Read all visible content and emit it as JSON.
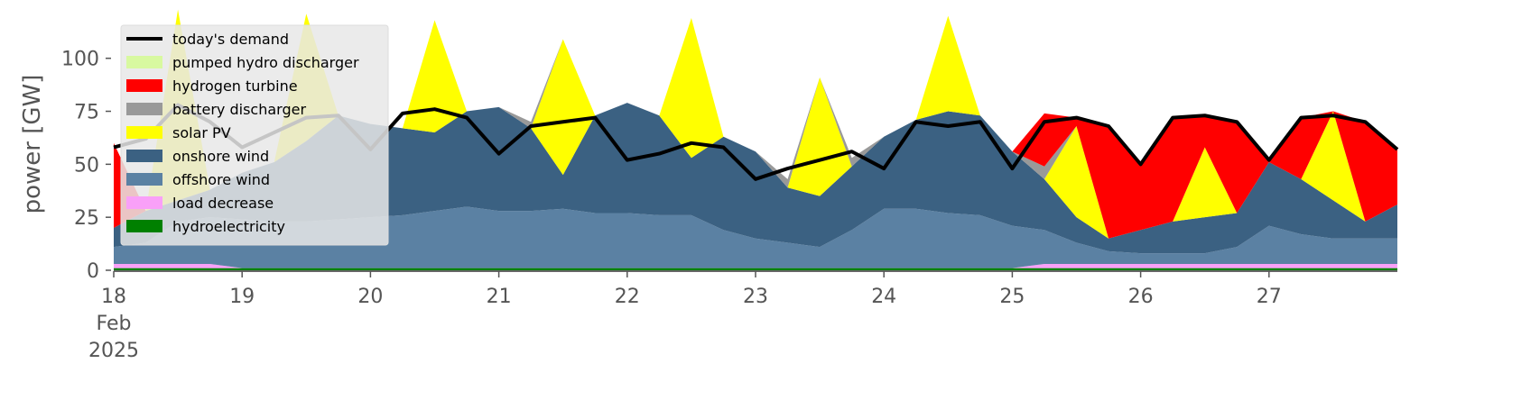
{
  "chart_data": {
    "type": "stacked_area",
    "ylabel": "power [GW]",
    "x": [
      18,
      18.25,
      18.5,
      18.75,
      19,
      19.25,
      19.5,
      19.75,
      20,
      20.25,
      20.5,
      20.75,
      21,
      21.25,
      21.5,
      21.75,
      22,
      22.25,
      22.5,
      22.75,
      23,
      23.25,
      23.5,
      23.75,
      24,
      24.25,
      24.5,
      24.75,
      25,
      25.25,
      25.5,
      25.75,
      26,
      26.25,
      26.5,
      26.75,
      27,
      27.25,
      27.5,
      27.75,
      28
    ],
    "xlim": [
      18,
      28
    ],
    "xticks": [
      {
        "value": 18,
        "label": "18\nFeb\n2025"
      },
      19,
      20,
      21,
      22,
      23,
      24,
      25,
      26,
      27
    ],
    "ylim": [
      0,
      119
    ],
    "yticks": [
      0,
      25,
      50,
      75,
      100
    ],
    "legend": "upper left",
    "line": {
      "name": "today's demand",
      "color": "#000000",
      "values": [
        58,
        62,
        78,
        70,
        58,
        65,
        72,
        73,
        57,
        74,
        76,
        72,
        55,
        68,
        70,
        72,
        52,
        55,
        60,
        58,
        43,
        48,
        52,
        56,
        48,
        70,
        68,
        70,
        48,
        70,
        72,
        68,
        50,
        72,
        73,
        70,
        52,
        72,
        73,
        70,
        57
      ]
    },
    "series": [
      {
        "name": "pumped hydro discharger",
        "color": "#d8f9a0",
        "values": [
          0,
          0,
          0,
          0,
          0,
          0,
          0,
          0,
          0,
          0,
          0,
          0,
          0,
          0,
          0,
          0,
          0,
          0,
          0,
          0,
          0,
          0,
          0,
          0,
          0,
          0,
          0,
          0,
          0,
          0,
          0,
          0,
          0,
          0,
          0,
          0,
          0,
          0,
          0,
          0,
          0
        ]
      },
      {
        "name": "hydrogen turbine",
        "color": "#ff0000",
        "values": [
          40,
          0,
          0,
          0,
          0,
          0,
          0,
          0,
          0,
          0,
          0,
          0,
          0,
          0,
          0,
          0,
          0,
          0,
          0,
          0,
          0,
          0,
          0,
          0,
          0,
          0,
          0,
          0,
          0,
          25,
          4,
          53,
          31,
          49,
          15,
          43,
          1,
          29,
          0,
          47,
          26
        ]
      },
      {
        "name": "battery discharger",
        "color": "#999999",
        "values": [
          0,
          0,
          0,
          0,
          0,
          0,
          0,
          0,
          0,
          0,
          0,
          0,
          0,
          3,
          0,
          0,
          0,
          0,
          0,
          0,
          0,
          4,
          0,
          4,
          0,
          0,
          0,
          0,
          0,
          6,
          0,
          0,
          0,
          0,
          0,
          0,
          0,
          0,
          0,
          0,
          0
        ]
      },
      {
        "name": "solar PV",
        "color": "#ffff00",
        "values": [
          0,
          0,
          90,
          0,
          0,
          0,
          60,
          0,
          0,
          0,
          53,
          0,
          0,
          0,
          64,
          0,
          0,
          0,
          66,
          0,
          0,
          0,
          56,
          0,
          0,
          0,
          45,
          0,
          0,
          0,
          43,
          0,
          0,
          0,
          33,
          0,
          0,
          0,
          42,
          0,
          0
        ]
      },
      {
        "name": "onshore wind",
        "color": "#3b6182",
        "values": [
          9,
          15,
          10,
          13,
          22,
          28,
          38,
          49,
          44,
          41,
          37,
          45,
          49,
          39,
          16,
          46,
          52,
          47,
          27,
          44,
          41,
          26,
          24,
          30,
          34,
          42,
          48,
          47,
          35,
          24,
          12,
          6,
          11,
          15,
          17,
          16,
          30,
          26,
          18,
          8,
          16
        ]
      },
      {
        "name": "offshore wind",
        "color": "#5b81a3",
        "values": [
          8,
          10,
          20,
          22,
          23,
          22,
          22,
          23,
          24,
          25,
          27,
          29,
          27,
          27,
          28,
          26,
          26,
          25,
          25,
          18,
          14,
          12,
          10,
          18,
          28,
          28,
          26,
          25,
          20,
          16,
          10,
          6,
          5,
          5,
          5,
          8,
          18,
          14,
          12,
          12,
          12
        ]
      },
      {
        "name": "load decrease",
        "color": "#f9a0f8",
        "values": [
          2,
          2,
          2,
          2,
          0,
          0,
          0,
          0,
          0,
          0,
          0,
          0,
          0,
          0,
          0,
          0,
          0,
          0,
          0,
          0,
          0,
          0,
          0,
          0,
          0,
          0,
          0,
          0,
          0,
          2,
          2,
          2,
          2,
          2,
          2,
          2,
          2,
          2,
          2,
          2,
          2
        ]
      },
      {
        "name": "hydroelectricity",
        "color": "#008000",
        "values": [
          1,
          1,
          1,
          1,
          1,
          1,
          1,
          1,
          1,
          1,
          1,
          1,
          1,
          1,
          1,
          1,
          1,
          1,
          1,
          1,
          1,
          1,
          1,
          1,
          1,
          1,
          1,
          1,
          1,
          1,
          1,
          1,
          1,
          1,
          1,
          1,
          1,
          1,
          1,
          1,
          1
        ]
      }
    ]
  }
}
